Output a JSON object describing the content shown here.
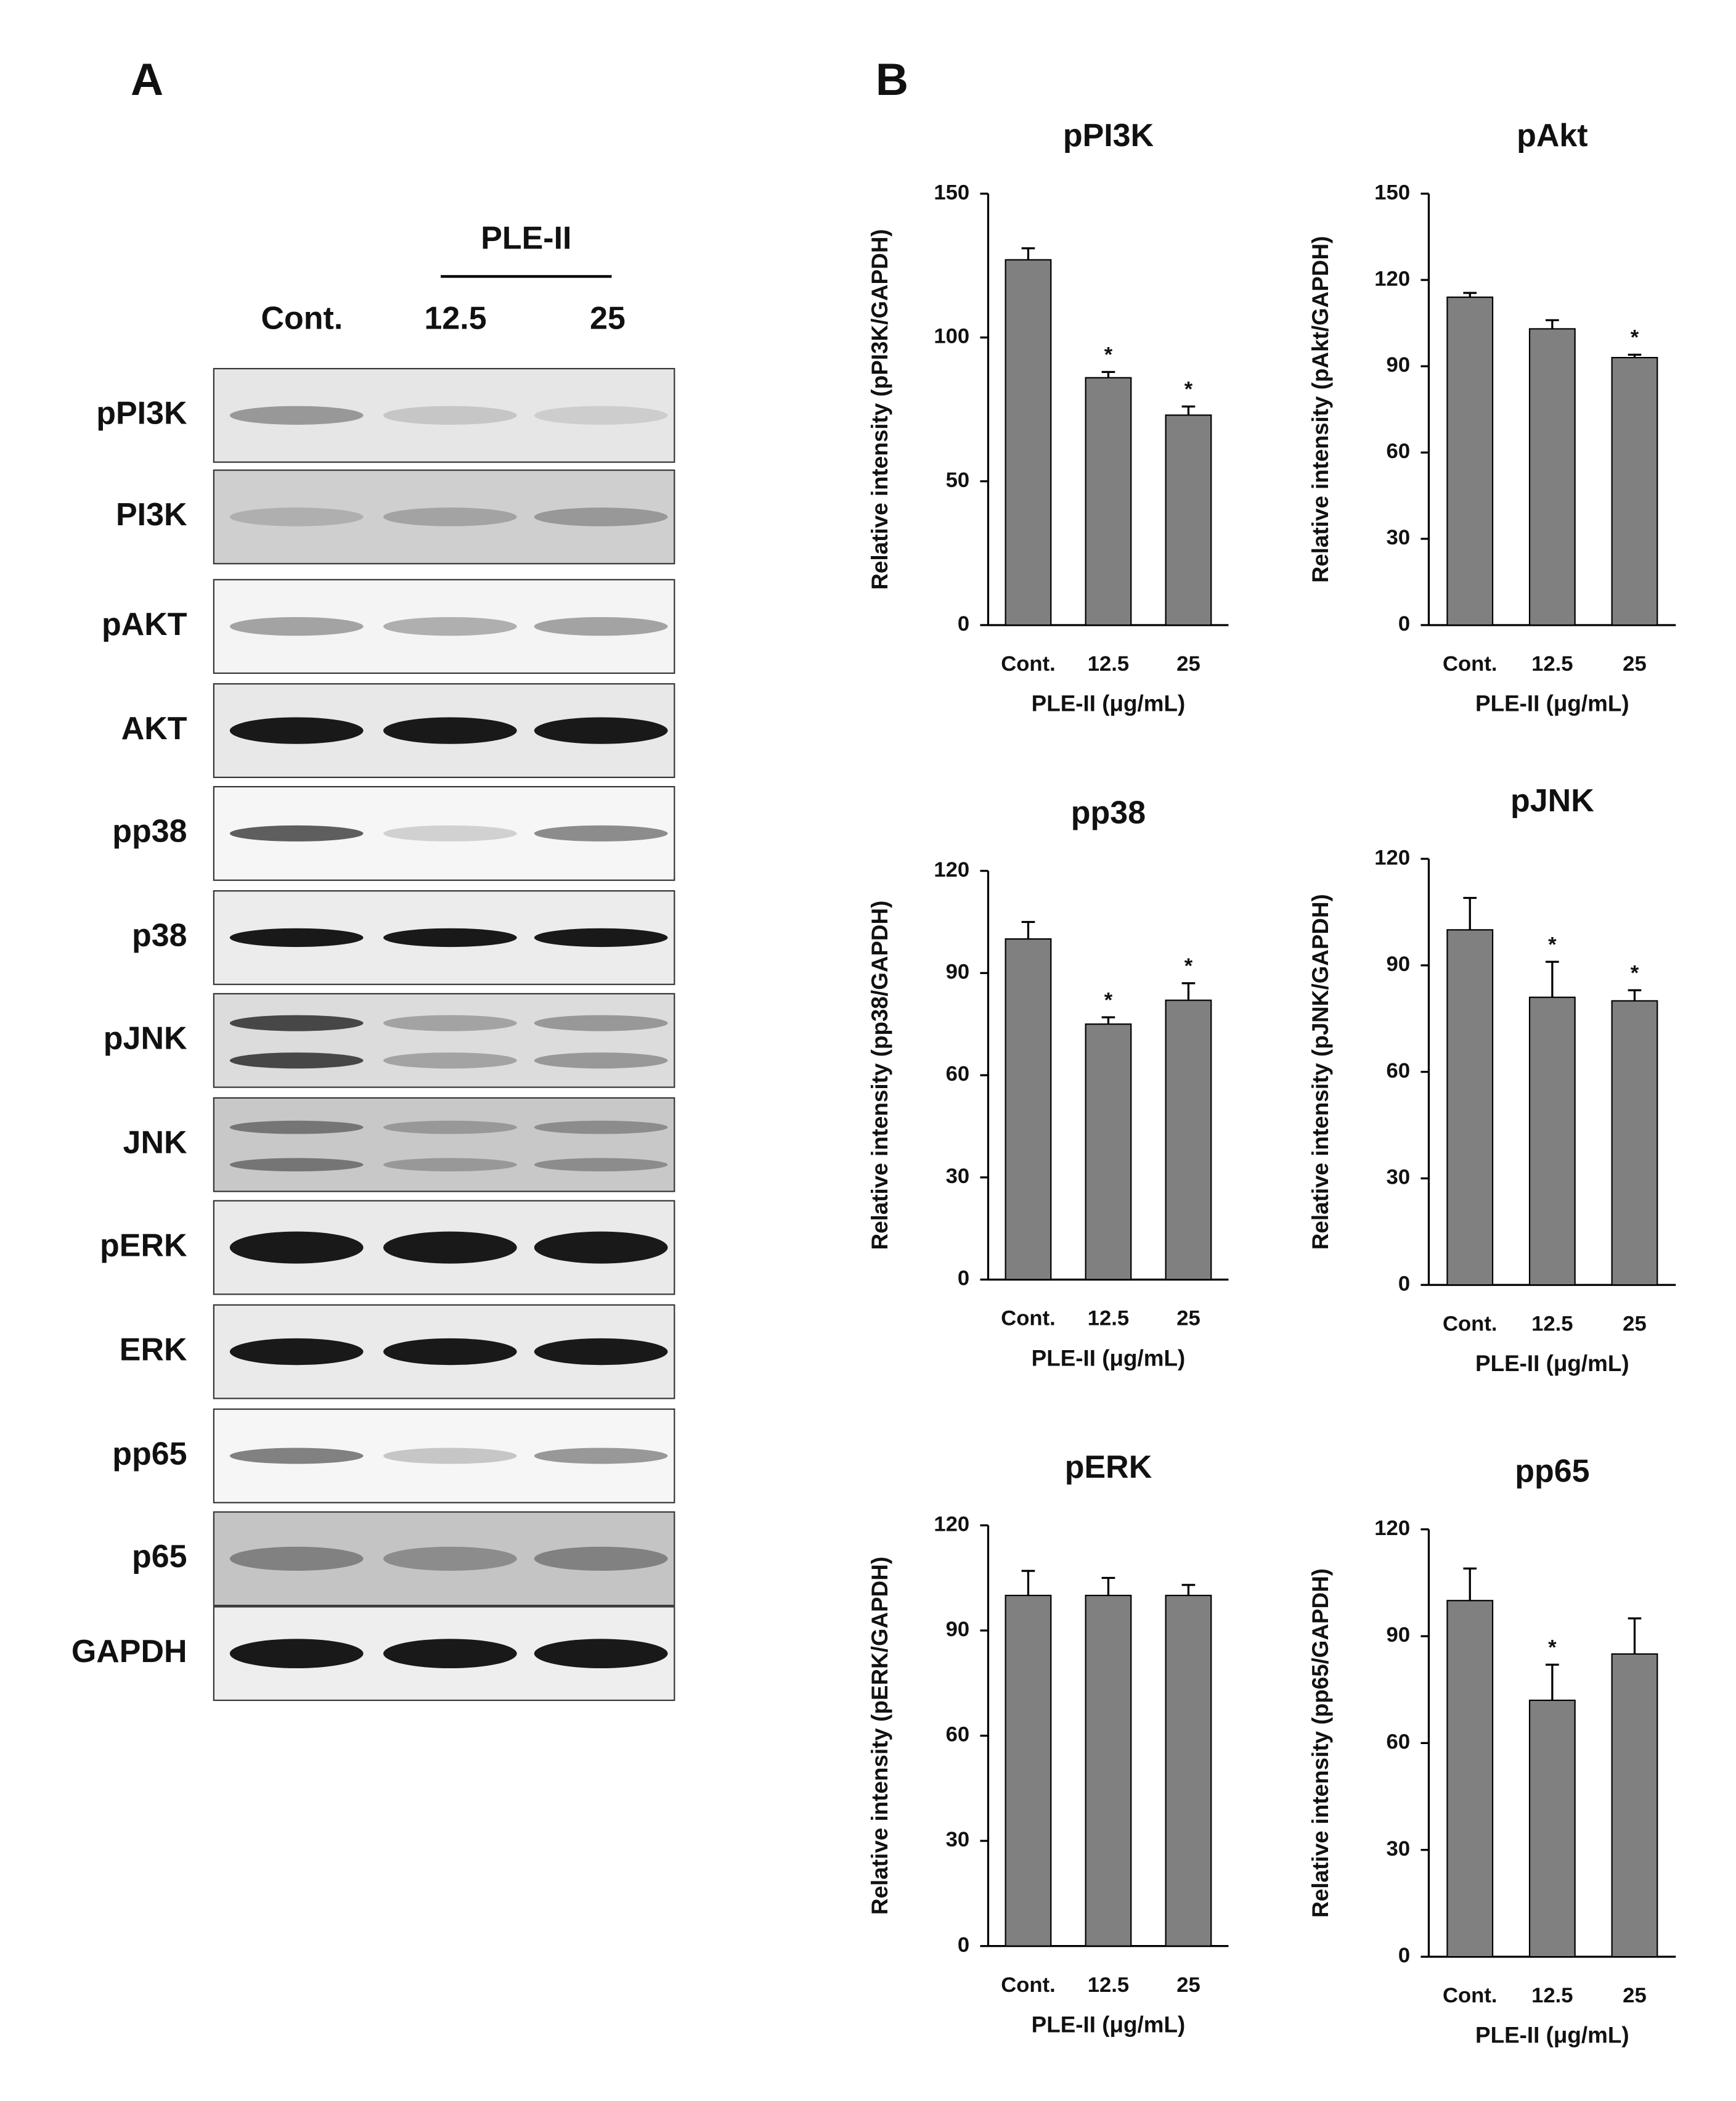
{
  "panel_a": {
    "label": "A",
    "group": "PLE-II",
    "lanes": [
      "Cont.",
      "12.5",
      "25"
    ],
    "rows": [
      "pPI3K",
      "PI3K",
      "pAKT",
      "AKT",
      "pp38",
      "p38",
      "pJNK",
      "JNK",
      "pERK",
      "ERK",
      "pp65",
      "p65",
      "GAPDH"
    ]
  },
  "panel_b_label": "B",
  "chart_data": [
    {
      "type": "bar",
      "title": "pPI3K",
      "ylabel": "Relative intensity (pPI3K/GAPDH)",
      "xlabel": "PLE-II (μg/mL)",
      "categories": [
        "Cont.",
        "12.5",
        "25"
      ],
      "values": [
        127,
        86,
        73
      ],
      "errors": [
        4,
        2,
        3
      ],
      "significance": [
        null,
        "*",
        "*"
      ],
      "color": "#808080",
      "ylim": [
        0,
        150
      ],
      "yticks": [
        0,
        50,
        100,
        150
      ]
    },
    {
      "type": "bar",
      "title": "pAkt",
      "ylabel": "Relative intensity (pAkt/GAPDH)",
      "xlabel": "PLE-II (μg/mL)",
      "categories": [
        "Cont.",
        "12.5",
        "25"
      ],
      "values": [
        114,
        103,
        93
      ],
      "errors": [
        1.5,
        3,
        1
      ],
      "significance": [
        null,
        null,
        "*"
      ],
      "color": "#808080",
      "ylim": [
        0,
        150
      ],
      "yticks": [
        0,
        30,
        60,
        90,
        120,
        150
      ]
    },
    {
      "type": "bar",
      "title": "pp38",
      "ylabel": "Relative intensity (pp38/GAPDH)",
      "xlabel": "PLE-II (μg/mL)",
      "categories": [
        "Cont.",
        "12.5",
        "25"
      ],
      "values": [
        100,
        75,
        82
      ],
      "errors": [
        5,
        2,
        5
      ],
      "significance": [
        null,
        "*",
        "*"
      ],
      "color": "#808080",
      "ylim": [
        0,
        120
      ],
      "yticks": [
        0,
        30,
        60,
        90,
        120
      ]
    },
    {
      "type": "bar",
      "title": "pJNK",
      "ylabel": "Relative intensity (pJNK/GAPDH)",
      "xlabel": "PLE-II (μg/mL)",
      "categories": [
        "Cont.",
        "12.5",
        "25"
      ],
      "values": [
        100,
        81,
        80
      ],
      "errors": [
        9,
        10,
        3
      ],
      "significance": [
        null,
        "*",
        "*"
      ],
      "color": "#808080",
      "ylim": [
        0,
        120
      ],
      "yticks": [
        0,
        30,
        60,
        90,
        120
      ]
    },
    {
      "type": "bar",
      "title": "pERK",
      "ylabel": "Relative intensity (pERK/GAPDH)",
      "xlabel": "PLE-II (μg/mL)",
      "categories": [
        "Cont.",
        "12.5",
        "25"
      ],
      "values": [
        100,
        100,
        100
      ],
      "errors": [
        7,
        5,
        3
      ],
      "significance": [
        null,
        null,
        null
      ],
      "color": "#808080",
      "ylim": [
        0,
        120
      ],
      "yticks": [
        0,
        30,
        60,
        90,
        120
      ]
    },
    {
      "type": "bar",
      "title": "pp65",
      "ylabel": "Relative intensity (pp65/GAPDH)",
      "xlabel": "PLE-II (μg/mL)",
      "categories": [
        "Cont.",
        "12.5",
        "25"
      ],
      "values": [
        100,
        72,
        85
      ],
      "errors": [
        9,
        10,
        10
      ],
      "significance": [
        null,
        "*",
        null
      ],
      "color": "#808080",
      "ylim": [
        0,
        120
      ],
      "yticks": [
        0,
        30,
        60,
        90,
        120
      ]
    }
  ]
}
